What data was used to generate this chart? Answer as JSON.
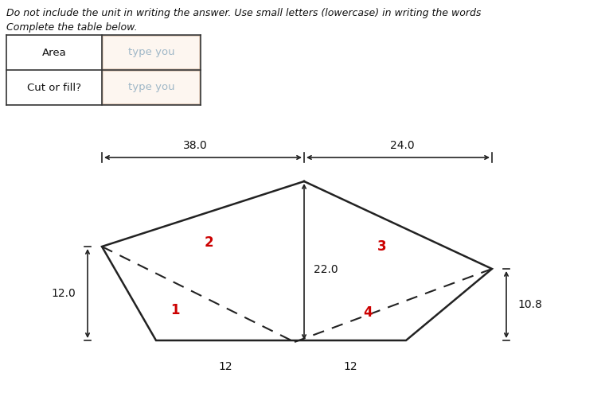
{
  "title_line1": "Do not include the unit in writing the answer. Use small letters (lowercase) in writing the words",
  "title_line2": "Complete the table below.",
  "table_row1_label": "Area",
  "table_row2_label": "Cut or fill?",
  "table_placeholder": "type you",
  "dim_top_left": "38.0",
  "dim_top_right": "24.0",
  "dim_left": "12.0",
  "dim_right": "10.8",
  "dim_vert": "22.0",
  "dim_bot_left": "12",
  "dim_bot_right": "12",
  "label_1": "1",
  "label_2": "2",
  "label_3": "3",
  "label_4": "4",
  "label_color": "#cc0000",
  "shape_color": "#222222",
  "bg_color": "#ffffff",
  "text_color": "#111111",
  "table_text_color": "#a0b8c8",
  "table_input_bg": "#fdf6f0",
  "table_input_border": "#d4b8a0"
}
